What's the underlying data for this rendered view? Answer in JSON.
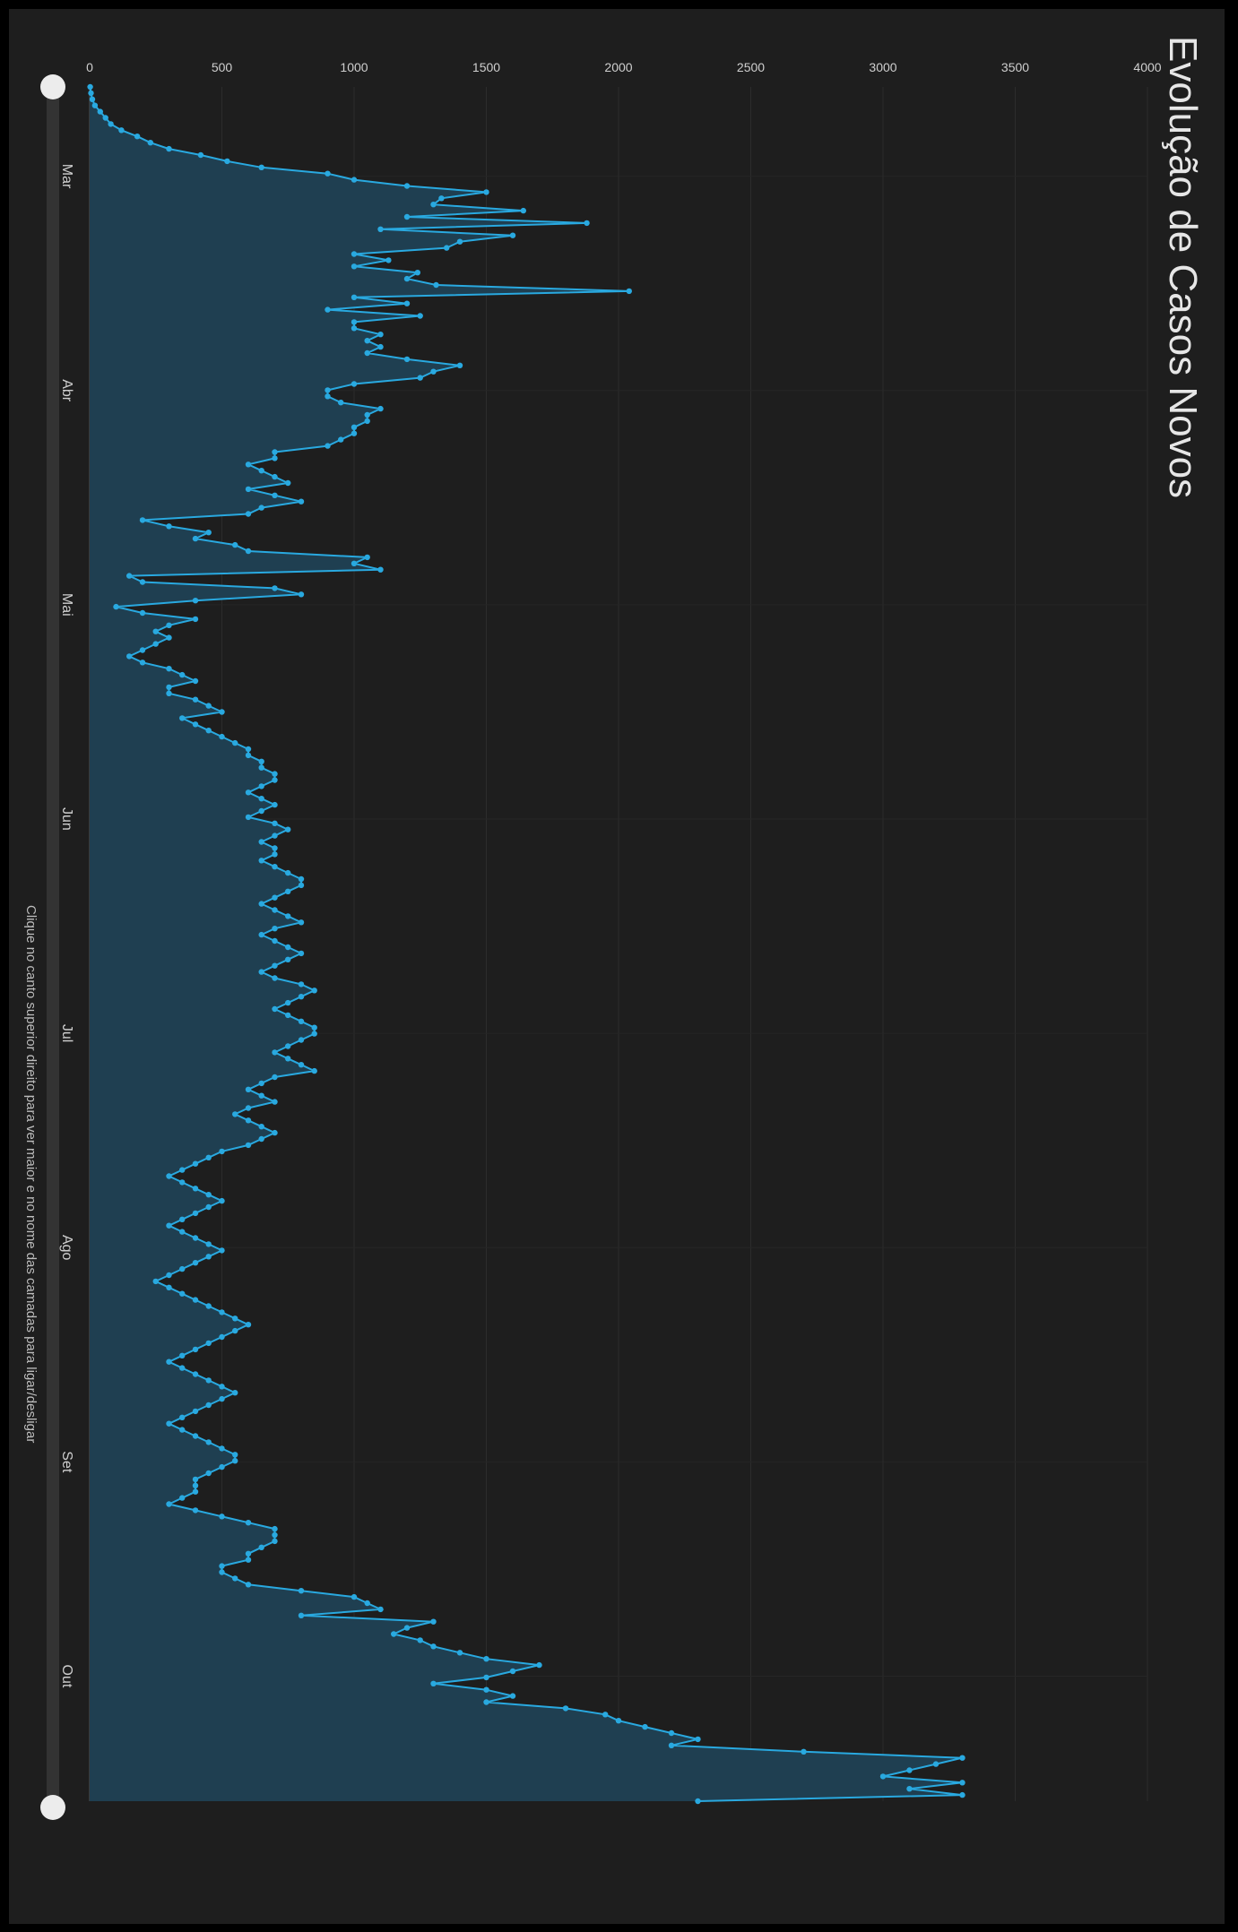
{
  "chart_data": {
    "type": "area",
    "title": "Evolução de Casos Novos",
    "footer": "Clique no canto superior direito para ver maior e no nome das camadas para ligar/desligar",
    "y_ticks": [
      0,
      500,
      1000,
      1500,
      2000,
      2500,
      3000,
      3500,
      4000
    ],
    "ylim": [
      0,
      4000
    ],
    "x_ticks": [
      "Mar",
      "Abr",
      "Mai",
      "Jun",
      "Jul",
      "Ago",
      "Set",
      "Out"
    ],
    "colors": {
      "line": "#29a9e0",
      "area": "#1f3f51",
      "background": "#1e1e1e",
      "grid": "#2c2c2c"
    },
    "series": [
      {
        "x_start": "Mar 1",
        "values": [
          2,
          5,
          10,
          20,
          40,
          60,
          80,
          120,
          180,
          230,
          300,
          420,
          520,
          650,
          900,
          1000,
          1200,
          1500,
          1330,
          1300,
          1640,
          1200,
          1880,
          1100,
          1600,
          1400,
          1350,
          1000,
          1130,
          1000,
          1240,
          1200,
          1310,
          2040,
          1000,
          1200,
          900,
          1250,
          1000,
          1000,
          1100,
          1050,
          1100,
          1050,
          1200,
          1400,
          1300,
          1250,
          1000,
          900,
          900,
          950,
          1100,
          1050,
          1050,
          1000,
          1000,
          950,
          900,
          700,
          700,
          600,
          650,
          700,
          750,
          600,
          700,
          800,
          650,
          600,
          200,
          300,
          450,
          400,
          550,
          600,
          1050,
          1000,
          1100,
          150,
          200,
          700,
          800,
          400,
          100,
          200,
          400,
          300,
          250,
          300,
          250,
          200,
          150,
          200,
          300,
          350,
          400,
          300,
          300,
          400,
          450,
          500,
          350,
          400,
          450,
          500,
          550,
          600,
          600,
          650,
          650,
          700,
          700,
          650,
          600,
          650,
          700,
          650,
          600,
          700,
          750,
          700,
          650,
          700,
          700,
          650,
          700,
          750,
          800,
          800,
          750,
          700,
          650,
          700,
          750,
          800,
          700,
          650,
          700,
          750,
          800,
          750,
          700,
          650,
          700,
          800,
          850,
          800,
          750,
          700,
          750,
          800,
          850,
          850,
          800,
          750,
          700,
          750,
          800,
          850,
          700,
          650,
          600,
          650,
          700,
          600,
          550,
          600,
          650,
          700,
          650,
          600,
          500,
          450,
          400,
          350,
          300,
          350,
          400,
          450,
          500,
          450,
          400,
          350,
          300,
          350,
          400,
          450,
          500,
          450,
          400,
          350,
          300,
          250,
          300,
          350,
          400,
          450,
          500,
          550,
          600,
          550,
          500,
          450,
          400,
          350,
          300,
          350,
          400,
          450,
          500,
          550,
          500,
          450,
          400,
          350,
          300,
          350,
          400,
          450,
          500,
          550,
          550,
          500,
          450,
          400,
          400,
          400,
          350,
          300,
          400,
          500,
          600,
          700,
          700,
          700,
          650,
          600,
          600,
          500,
          500,
          550,
          600,
          800,
          1000,
          1050,
          1100,
          800,
          1300,
          1200,
          1150,
          1250,
          1300,
          1400,
          1500,
          1700,
          1600,
          1500,
          1300,
          1500,
          1600,
          1500,
          1800,
          1950,
          2000,
          2100,
          2200,
          2300,
          2200,
          2700,
          3300,
          3200,
          3100,
          3000,
          3300,
          3100,
          3300,
          2300
        ]
      }
    ]
  }
}
